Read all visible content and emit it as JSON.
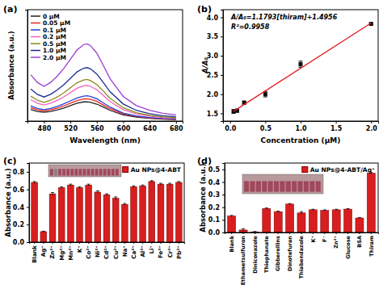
{
  "chart_data": [
    {
      "type": "line",
      "title": "(a)",
      "x_label": "Wavelength (nm)",
      "y_label": "Absorbance (a.u.)",
      "x": [
        460,
        470,
        480,
        490,
        500,
        510,
        520,
        530,
        540,
        545,
        550,
        560,
        570,
        580,
        600,
        620,
        640,
        660,
        680
      ],
      "series": [
        {
          "name": "0 μM",
          "color": "#222222",
          "values": [
            0.078,
            0.065,
            0.059,
            0.065,
            0.075,
            0.088,
            0.104,
            0.12,
            0.129,
            0.13,
            0.127,
            0.114,
            0.094,
            0.072,
            0.042,
            0.026,
            0.018,
            0.013,
            0.01
          ]
        },
        {
          "name": "0.05 μM",
          "color": "#e8261e",
          "values": [
            0.09,
            0.075,
            0.068,
            0.075,
            0.087,
            0.102,
            0.12,
            0.138,
            0.149,
            0.15,
            0.147,
            0.132,
            0.108,
            0.083,
            0.048,
            0.03,
            0.021,
            0.015,
            0.012
          ]
        },
        {
          "name": "0.1 μM",
          "color": "#2b3fd6",
          "values": [
            0.102,
            0.085,
            0.077,
            0.085,
            0.099,
            0.116,
            0.136,
            0.156,
            0.168,
            0.17,
            0.167,
            0.15,
            0.122,
            0.094,
            0.054,
            0.034,
            0.024,
            0.017,
            0.014
          ]
        },
        {
          "name": "0.2 μM",
          "color": "#f062c0",
          "values": [
            0.144,
            0.12,
            0.108,
            0.12,
            0.139,
            0.163,
            0.192,
            0.221,
            0.238,
            0.24,
            0.235,
            0.211,
            0.173,
            0.132,
            0.077,
            0.048,
            0.034,
            0.024,
            0.019
          ]
        },
        {
          "name": "0.5 μM",
          "color": "#8a8a1a",
          "values": [
            0.168,
            0.14,
            0.126,
            0.14,
            0.162,
            0.19,
            0.224,
            0.258,
            0.277,
            0.28,
            0.274,
            0.246,
            0.202,
            0.154,
            0.09,
            0.056,
            0.039,
            0.028,
            0.022
          ]
        },
        {
          "name": "1.0 μM",
          "color": "#1c2d8f",
          "values": [
            0.216,
            0.18,
            0.162,
            0.18,
            0.209,
            0.245,
            0.288,
            0.331,
            0.356,
            0.36,
            0.353,
            0.317,
            0.259,
            0.198,
            0.115,
            0.072,
            0.05,
            0.036,
            0.029
          ]
        },
        {
          "name": "2.0 μM",
          "color": "#9b3fd0",
          "values": [
            0.312,
            0.26,
            0.234,
            0.26,
            0.302,
            0.354,
            0.416,
            0.478,
            0.515,
            0.52,
            0.51,
            0.458,
            0.374,
            0.286,
            0.166,
            0.104,
            0.073,
            0.052,
            0.042
          ]
        }
      ],
      "xlim": [
        455,
        690
      ],
      "xticks": [
        480,
        520,
        560,
        600,
        640,
        680
      ],
      "ylim": [
        0,
        0.75
      ],
      "tick_labels": "x",
      "legend": "upper left"
    },
    {
      "type": "scatter",
      "title": "(b)",
      "x_label": "Concentration (μM)",
      "y_label": "A/A₀",
      "annotations": [
        "A/A₀=1.1793[thiram]+1.4956",
        "R²=0.9958"
      ],
      "series": [
        {
          "type": "scatter",
          "marker": "square",
          "color": "#111111",
          "x": [
            0.05,
            0.1,
            0.2,
            0.5,
            1.0,
            2.0
          ],
          "values": [
            1.55,
            1.57,
            1.78,
            2.0,
            2.78,
            3.83
          ],
          "errors": [
            0.05,
            0.04,
            0.04,
            0.07,
            0.08,
            0.02
          ]
        },
        {
          "type": "line",
          "line_style": "solid",
          "color": "#e41a1c",
          "x": [
            0.05,
            2.0
          ],
          "values": [
            1.5546,
            3.8542
          ]
        }
      ],
      "xlim": [
        -0.1,
        2.1
      ],
      "xticks": [
        {
          "value": 0,
          "label": "0.0"
        },
        0.5,
        {
          "value": 1,
          "label": "1.0"
        },
        1.5,
        {
          "value": 2,
          "label": "2.0"
        }
      ],
      "ylim": [
        1.3,
        4.2
      ],
      "yticks": [
        1.5,
        {
          "value": 2,
          "label": "2.0"
        },
        2.5,
        {
          "value": 3,
          "label": "3.0"
        },
        3.5,
        {
          "value": 4,
          "label": "4.0"
        }
      ]
    },
    {
      "type": "bar",
      "title": "(c)",
      "y_label": "Absorbance (a.u.)",
      "categories": [
        "Blank",
        "Ag⁺",
        "Zn²⁺",
        "Mg²⁺",
        "Mn²⁺",
        "K⁺",
        "Co²⁺",
        "Ni²⁺",
        "Cd²⁺",
        "Cu²⁺",
        "Na⁺",
        "Ca²⁺",
        "Al³⁺",
        "Li⁺",
        "Fe³⁺",
        "Cr³⁺",
        "Pb²⁺"
      ],
      "series": [
        {
          "name": "Au NPs@4-ABT",
          "color": "#d81e1e",
          "values": [
            0.68,
            0.12,
            0.55,
            0.62,
            0.65,
            0.62,
            0.65,
            0.57,
            0.54,
            0.5,
            0.43,
            0.63,
            0.64,
            0.69,
            0.66,
            0.66,
            0.68
          ],
          "errors": [
            0.01,
            0.005,
            0.015,
            0.01,
            0.01,
            0.01,
            0.01,
            0.015,
            0.01,
            0.015,
            0.01,
            0.01,
            0.01,
            0.01,
            0.01,
            0.01,
            0.01
          ]
        }
      ],
      "ylim": [
        0,
        0.9
      ],
      "yticks": [
        {
          "value": 0,
          "label": "0.0"
        },
        0.2,
        0.4,
        0.6,
        0.8
      ],
      "legend": "upper right"
    },
    {
      "type": "bar",
      "title": "(d)",
      "y_label": "Absorbance (a.u.)",
      "categories": [
        "Blank",
        "Ethametsulfuron",
        "Diniconazole",
        "Thiophanate",
        "Gibberellins",
        "Dinotefuran",
        "Thiabendazole",
        "K⁺",
        "F⁻",
        "Zn²⁺",
        "Glucose",
        "BSA",
        "Thiram"
      ],
      "series": [
        {
          "name": "Au NPs@4-ABT/Ag⁺",
          "color": "#d81e1e",
          "values": [
            0.13,
            0.02,
            0.005,
            0.19,
            0.165,
            0.225,
            0.155,
            0.18,
            0.175,
            0.18,
            0.185,
            0.115,
            0.47
          ],
          "errors": [
            0.005,
            0.01,
            0.003,
            0.004,
            0.004,
            0.004,
            0.01,
            0.004,
            0.004,
            0.004,
            0.004,
            0.004,
            0.005
          ]
        }
      ],
      "ylim": [
        0,
        0.55
      ],
      "yticks": [
        {
          "value": 0,
          "label": "0.0"
        },
        0.1,
        0.2,
        0.3,
        0.4,
        0.5
      ],
      "legend": "upper right"
    }
  ]
}
